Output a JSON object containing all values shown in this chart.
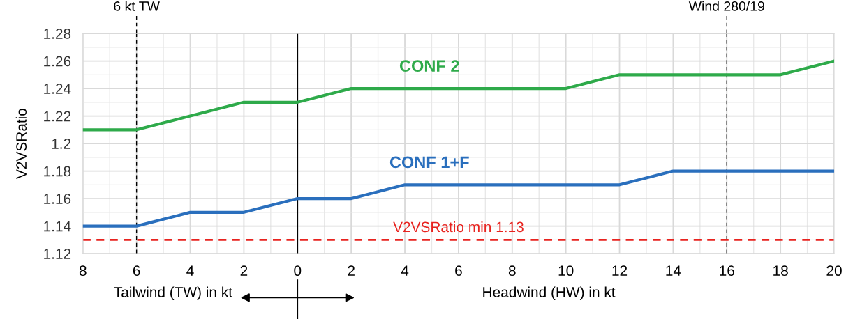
{
  "chart_data": {
    "type": "line",
    "ylabel": "V2VSRatio",
    "x": [
      -8,
      -6,
      -4,
      -2,
      0,
      2,
      4,
      6,
      8,
      10,
      12,
      14,
      16,
      18,
      20
    ],
    "series": [
      {
        "name": "CONF 2",
        "color": "#2eaa4a",
        "values": [
          1.21,
          1.21,
          1.22,
          1.23,
          1.23,
          1.24,
          1.24,
          1.24,
          1.24,
          1.24,
          1.25,
          1.25,
          1.25,
          1.25,
          1.26
        ]
      },
      {
        "name": "CONF 1+F",
        "color": "#2a6fbd",
        "values": [
          1.14,
          1.14,
          1.15,
          1.15,
          1.16,
          1.16,
          1.17,
          1.17,
          1.17,
          1.17,
          1.17,
          1.18,
          1.18,
          1.18,
          1.18
        ]
      }
    ],
    "xlim": [
      -8,
      20
    ],
    "ylim": [
      1.12,
      1.28
    ],
    "xticks": [
      {
        "value": -8,
        "label": "8"
      },
      {
        "value": -6,
        "label": "6"
      },
      {
        "value": -4,
        "label": "4"
      },
      {
        "value": -2,
        "label": "2"
      },
      0,
      2,
      4,
      6,
      8,
      10,
      12,
      14,
      16,
      18,
      20
    ],
    "yticks": [
      {
        "value": 1.12,
        "label": "1.12"
      },
      {
        "value": 1.14,
        "label": "1.14"
      },
      {
        "value": 1.16,
        "label": "1.16"
      },
      {
        "value": 1.18,
        "label": "1.18"
      },
      {
        "value": 1.2,
        "label": "1.2"
      },
      {
        "value": 1.22,
        "label": "1.22"
      },
      {
        "value": 1.24,
        "label": "1.24"
      },
      {
        "value": 1.26,
        "label": "1.26"
      },
      {
        "value": 1.28,
        "label": "1.28"
      }
    ],
    "ref_lines": [
      {
        "axis": "x",
        "value": -6,
        "label": "6 kt TW",
        "color": "#000000",
        "line_style": "dashed"
      },
      {
        "axis": "x",
        "value": 16,
        "label": "Wind 280/19",
        "color": "#000000",
        "line_style": "dashed"
      },
      {
        "axis": "x",
        "value": 0,
        "color": "#000000",
        "line_style": "solid"
      },
      {
        "axis": "y",
        "value": 1.13,
        "label": "V2VSRatio min 1.13",
        "color": "#e8231f",
        "line_style": "dashed"
      }
    ],
    "annotations": [
      "Tailwind (TW) in kt",
      "Headwind (HW) in kt"
    ],
    "grid": true,
    "legend": false,
    "marker": "none",
    "line_style": "solid"
  }
}
